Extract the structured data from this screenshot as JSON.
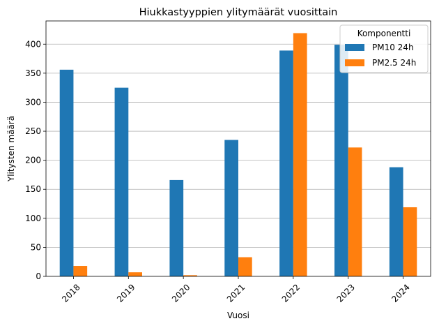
{
  "chart_data": {
    "type": "bar",
    "title": "Hiukkastyyppien ylitymäärät vuosittain",
    "xlabel": "Vuosi",
    "ylabel": "Ylitysten määrä",
    "categories": [
      "2018",
      "2019",
      "2020",
      "2021",
      "2022",
      "2023",
      "2024"
    ],
    "series": [
      {
        "name": "PM10 24h",
        "color": "#1f77b4",
        "values": [
          356,
          325,
          166,
          235,
          389,
          399,
          188
        ]
      },
      {
        "name": "PM2.5 24h",
        "color": "#ff7f0e",
        "values": [
          18,
          7,
          2,
          33,
          419,
          222,
          119
        ]
      }
    ],
    "ylim": [
      0,
      440
    ],
    "yticks": [
      0,
      50,
      100,
      150,
      200,
      250,
      300,
      350,
      400
    ],
    "grid": "y",
    "legend": {
      "title": "Komponentti",
      "placement": "top-right"
    }
  }
}
